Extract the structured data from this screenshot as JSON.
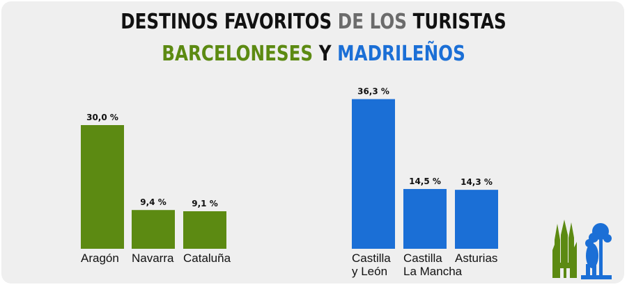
{
  "title": {
    "line1": [
      {
        "text": "DESTINOS FAVORITOS ",
        "color": "#111111"
      },
      {
        "text": "DE LOS",
        "color": "#6b6b6b"
      },
      {
        "text": " TURISTAS",
        "color": "#111111"
      }
    ],
    "line2": [
      {
        "text": "BARCELONESES",
        "color": "#5c8a12"
      },
      {
        "text": " Y ",
        "color": "#111111"
      },
      {
        "text": "MADRILEÑOS",
        "color": "#1b6fd6"
      }
    ]
  },
  "colors": {
    "barcelona": "#5c8a12",
    "madrid": "#1b6fd6",
    "background": "#efefef"
  },
  "icons": [
    "sagrada-familia-icon",
    "oso-y-madrono-icon"
  ],
  "chart_data": [
    {
      "type": "bar",
      "series_color": "#5c8a12",
      "categories": [
        [
          "Aragón"
        ],
        [
          "Navarra"
        ],
        [
          "Cataluña"
        ]
      ],
      "values": [
        30.0,
        9.4,
        9.1
      ],
      "value_labels": [
        "30,0 %",
        "9,4 %",
        "9,1 %"
      ],
      "unit": "%",
      "ylim": [
        0,
        40
      ]
    },
    {
      "type": "bar",
      "series_color": "#1b6fd6",
      "categories": [
        [
          "Castilla",
          "y León"
        ],
        [
          "Castilla",
          "La Mancha"
        ],
        [
          "Asturias"
        ]
      ],
      "values": [
        36.3,
        14.5,
        14.3
      ],
      "value_labels": [
        "36,3 %",
        "14,5 %",
        "14,3 %"
      ],
      "unit": "%",
      "ylim": [
        0,
        40
      ]
    }
  ]
}
